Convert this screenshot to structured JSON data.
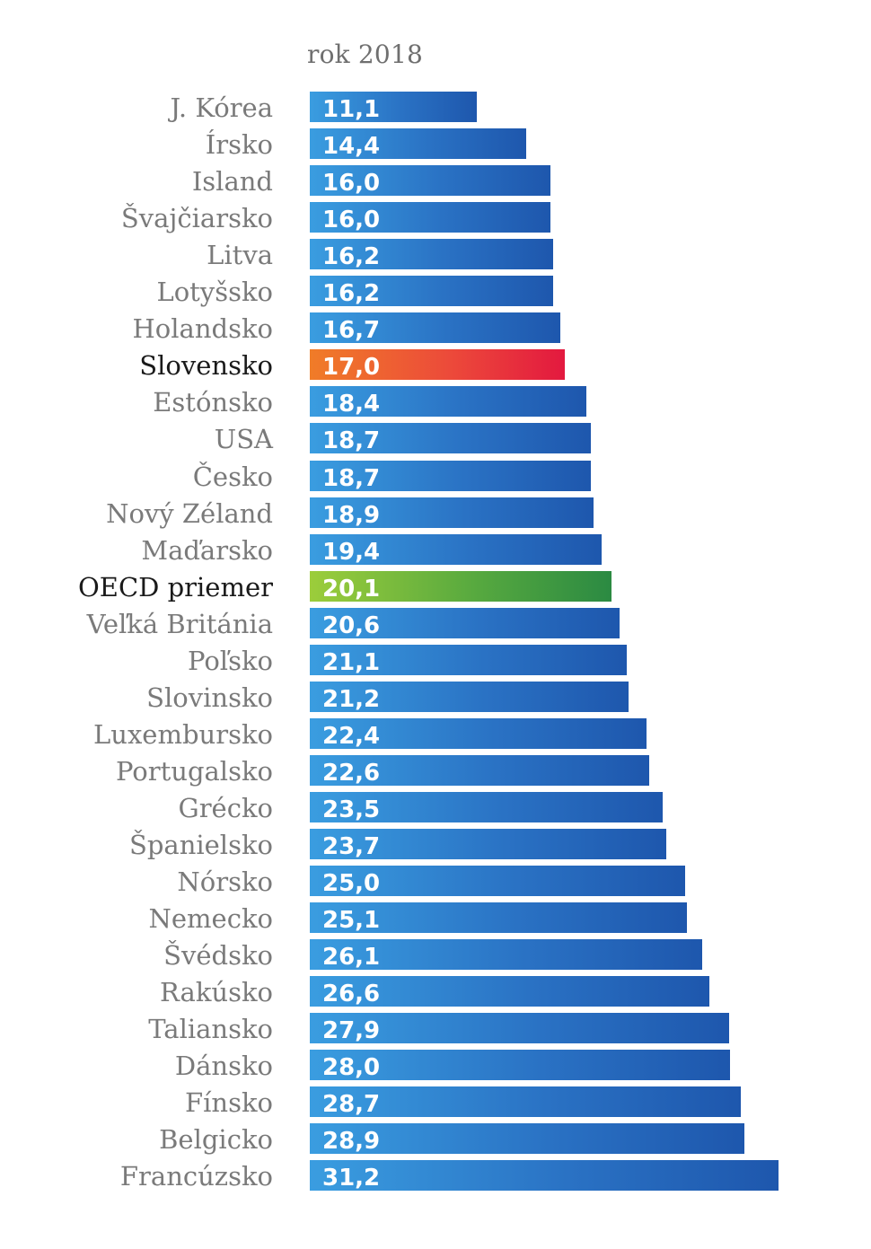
{
  "chart_data": {
    "type": "bar",
    "orientation": "horizontal",
    "title": "rok 2018",
    "categories": [
      "J. Kórea",
      "Írsko",
      "Island",
      "Švajčiarsko",
      "Litva",
      "Lotyšsko",
      "Holandsko",
      "Slovensko",
      "Estónsko",
      "USA",
      "Česko",
      "Nový Zéland",
      "Maďarsko",
      "OECD priemer",
      "Veľká Británia",
      "Poľsko",
      "Slovinsko",
      "Luxembursko",
      "Portugalsko",
      "Grécko",
      "Španielsko",
      "Nórsko",
      "Nemecko",
      "Švédsko",
      "Rakúsko",
      "Taliansko",
      "Dánsko",
      "Fínsko",
      "Belgicko",
      "Francúzsko"
    ],
    "values": [
      11.1,
      14.4,
      16.0,
      16.0,
      16.2,
      16.2,
      16.7,
      17.0,
      18.4,
      18.7,
      18.7,
      18.9,
      19.4,
      20.1,
      20.6,
      21.1,
      21.2,
      22.4,
      22.6,
      23.5,
      23.7,
      25.0,
      25.1,
      26.1,
      26.6,
      27.9,
      28.0,
      28.7,
      28.9,
      31.2
    ],
    "value_labels": [
      "11,1",
      "14,4",
      "16,0",
      "16,0",
      "16,2",
      "16,2",
      "16,7",
      "17,0",
      "18,4",
      "18,7",
      "18,7",
      "18,9",
      "19,4",
      "20,1",
      "20,6",
      "21,1",
      "21,2",
      "22,4",
      "22,6",
      "23,5",
      "23,7",
      "25,0",
      "25,1",
      "26,1",
      "26,6",
      "27,9",
      "28,0",
      "28,7",
      "28,9",
      "31,2"
    ],
    "highlighted": {
      "Slovensko": "orange-red",
      "OECD priemer": "green"
    },
    "colors": {
      "default": "#2a72c4",
      "Slovensko": "#ec4a3a",
      "OECD priemer": "#57a93f"
    },
    "xlim": [
      0,
      31.2
    ],
    "grid": false,
    "legend": "none"
  }
}
